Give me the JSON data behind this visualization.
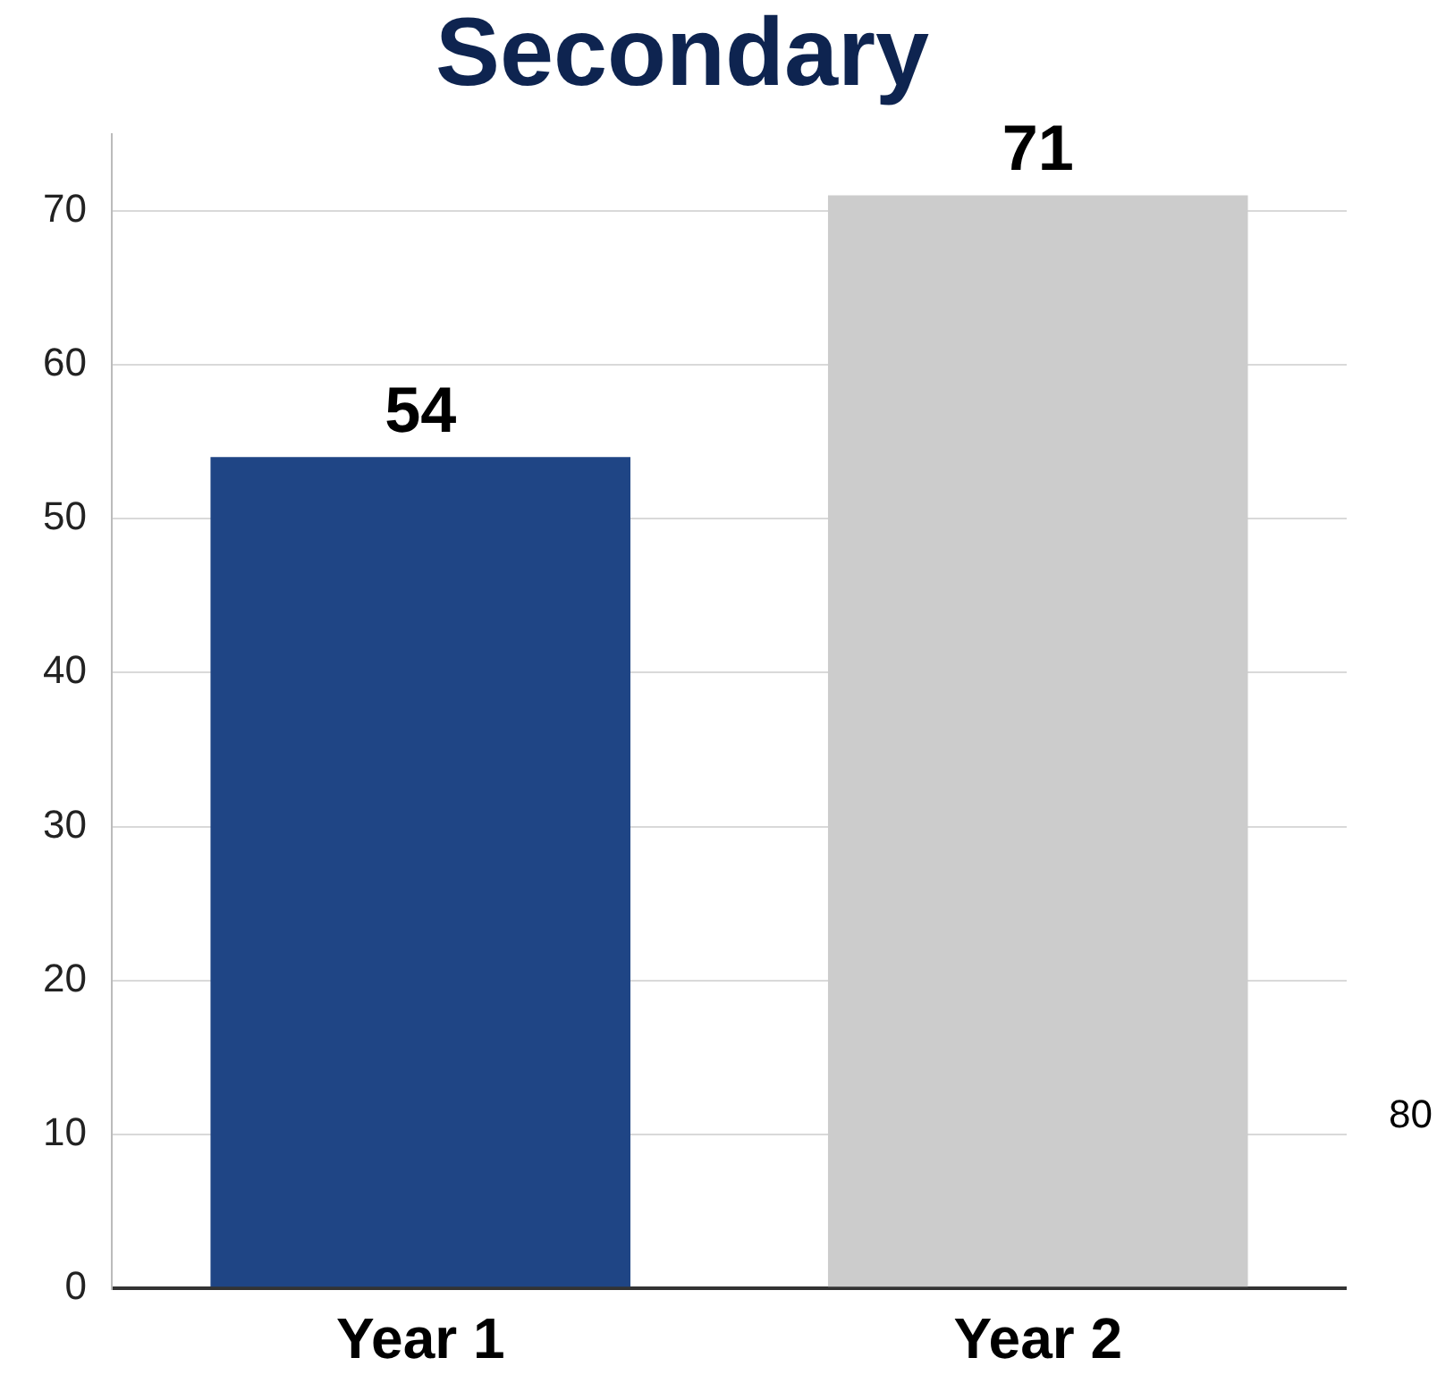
{
  "chart_data": {
    "type": "bar",
    "title": "Secondary",
    "categories": [
      "Year 1",
      "Year 2"
    ],
    "values": [
      54,
      71
    ],
    "colors": [
      "#1f4585",
      "#cccccc"
    ],
    "ylim": [
      0,
      75
    ],
    "yticks": [
      0,
      10,
      20,
      30,
      40,
      50,
      60,
      70
    ],
    "grid": "y",
    "legend": false,
    "data_labels": true,
    "annotations": [
      "80"
    ]
  }
}
